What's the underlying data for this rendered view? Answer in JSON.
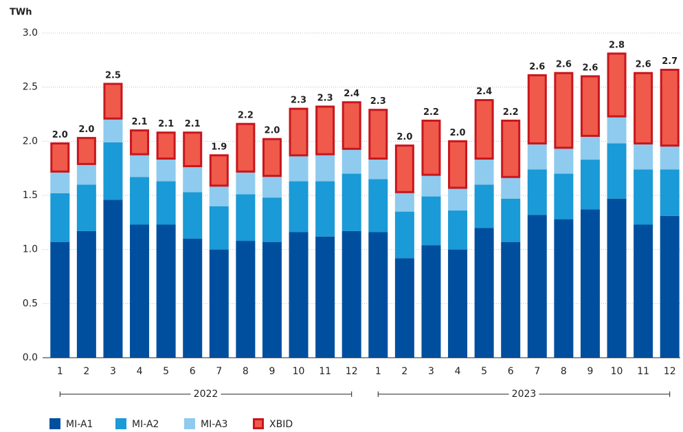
{
  "chart_data": {
    "type": "stacked_bar",
    "y_label": "TWh",
    "groups": [
      {
        "label": "2022",
        "categories": [
          "1",
          "2",
          "3",
          "4",
          "5",
          "6",
          "7",
          "8",
          "9",
          "10",
          "11",
          "12"
        ]
      },
      {
        "label": "2023",
        "categories": [
          "1",
          "2",
          "3",
          "4",
          "5",
          "6",
          "7",
          "8",
          "9",
          "10",
          "11",
          "12"
        ]
      }
    ],
    "series": [
      {
        "name": "MI-A1",
        "color": "#004f9f",
        "values": [
          1.07,
          1.17,
          1.46,
          1.23,
          1.23,
          1.1,
          1.0,
          1.08,
          1.07,
          1.16,
          1.12,
          1.17,
          1.16,
          0.92,
          1.04,
          1.0,
          1.2,
          1.07,
          1.32,
          1.28,
          1.37,
          1.47,
          1.23,
          1.31
        ]
      },
      {
        "name": "MI-A2",
        "color": "#1a9ad6",
        "values": [
          0.45,
          0.43,
          0.53,
          0.44,
          0.4,
          0.43,
          0.4,
          0.43,
          0.41,
          0.47,
          0.51,
          0.53,
          0.49,
          0.43,
          0.45,
          0.36,
          0.4,
          0.4,
          0.42,
          0.42,
          0.46,
          0.51,
          0.51,
          0.43
        ]
      },
      {
        "name": "MI-A3",
        "color": "#8ecbee",
        "values": [
          0.2,
          0.19,
          0.22,
          0.21,
          0.21,
          0.24,
          0.19,
          0.21,
          0.2,
          0.24,
          0.25,
          0.23,
          0.19,
          0.18,
          0.2,
          0.21,
          0.24,
          0.2,
          0.24,
          0.24,
          0.22,
          0.25,
          0.24,
          0.22
        ]
      },
      {
        "name": "XBID",
        "color": "#ef5a4a",
        "stroke": "#c8161d",
        "values": [
          0.26,
          0.24,
          0.32,
          0.22,
          0.24,
          0.31,
          0.28,
          0.44,
          0.34,
          0.43,
          0.44,
          0.43,
          0.45,
          0.43,
          0.5,
          0.43,
          0.54,
          0.52,
          0.63,
          0.69,
          0.55,
          0.58,
          0.65,
          0.7
        ]
      }
    ],
    "totals": {
      "values": [
        1.98,
        2.03,
        2.53,
        2.1,
        2.08,
        2.08,
        1.87,
        2.16,
        2.02,
        2.3,
        2.32,
        2.36,
        2.29,
        1.96,
        2.19,
        2.0,
        2.38,
        2.19,
        2.61,
        2.63,
        2.6,
        2.81,
        2.63,
        2.66
      ],
      "value_labels": [
        "2.0",
        "2.0",
        "2.5",
        "2.1",
        "2.1",
        "2.1",
        "1.9",
        "2.2",
        "2.0",
        "2.3",
        "2.3",
        "2.4",
        "2.3",
        "2.0",
        "2.2",
        "2.0",
        "2.4",
        "2.2",
        "2.6",
        "2.6",
        "2.6",
        "2.8",
        "2.6",
        "2.7"
      ]
    },
    "ylim": [
      0,
      3
    ],
    "yticks": [
      {
        "value": 0,
        "label": "0.0"
      },
      0.5,
      {
        "value": 1,
        "label": "1.0"
      },
      1.5,
      {
        "value": 2,
        "label": "2.0"
      },
      2.5,
      {
        "value": 3,
        "label": "3.0"
      }
    ],
    "grid": true
  }
}
